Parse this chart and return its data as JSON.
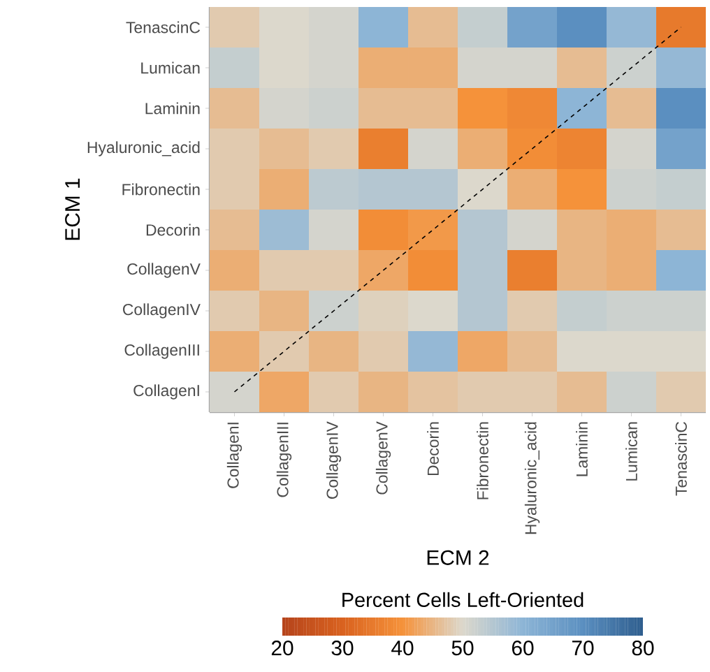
{
  "chart_data": {
    "type": "heatmap",
    "xlabel": "ECM 2",
    "ylabel": "ECM 1",
    "clabel": "Percent Cells Left-Oriented",
    "categories": [
      "CollagenI",
      "CollagenIII",
      "CollagenIV",
      "CollagenV",
      "Decorin",
      "Fibronectin",
      "Hyaluronic_acid",
      "Laminin",
      "Lumican",
      "TenascinC"
    ],
    "y_categories": [
      "TenascinC",
      "Lumican",
      "Laminin",
      "Hyaluronic_acid",
      "Fibronectin",
      "Decorin",
      "CollagenV",
      "CollagenIV",
      "CollagenIII",
      "CollagenI"
    ],
    "cells": [
      [
        48,
        50,
        51,
        60,
        46,
        53,
        65,
        70,
        59,
        35
      ],
      [
        53,
        50,
        51,
        44,
        44,
        51,
        51,
        46,
        52,
        59
      ],
      [
        46,
        51,
        52,
        46,
        46,
        40,
        38,
        60,
        46,
        70
      ],
      [
        48,
        46,
        48,
        36,
        51,
        44,
        39,
        37,
        51,
        65
      ],
      [
        48,
        44,
        54,
        55,
        55,
        50,
        44,
        40,
        52,
        53
      ],
      [
        46,
        58,
        51,
        39,
        41,
        55,
        51,
        45,
        44,
        46
      ],
      [
        44,
        48,
        48,
        43,
        39,
        55,
        36,
        45,
        44,
        60
      ],
      [
        48,
        45,
        52,
        49,
        50,
        55,
        48,
        53,
        52,
        52
      ],
      [
        44,
        48,
        45,
        48,
        59,
        43,
        46,
        50,
        50,
        50
      ],
      [
        51,
        43,
        48,
        45,
        47,
        48,
        48,
        46,
        52,
        48
      ]
    ],
    "clim": [
      20,
      80
    ],
    "cticks": [
      20,
      30,
      40,
      50,
      60,
      70,
      80
    ],
    "series": [
      {
        "type": "line",
        "line_style": "dashed",
        "color": "#000000",
        "values": [
          9,
          8,
          7,
          6,
          5,
          4,
          3,
          2,
          1,
          0
        ]
      }
    ]
  }
}
